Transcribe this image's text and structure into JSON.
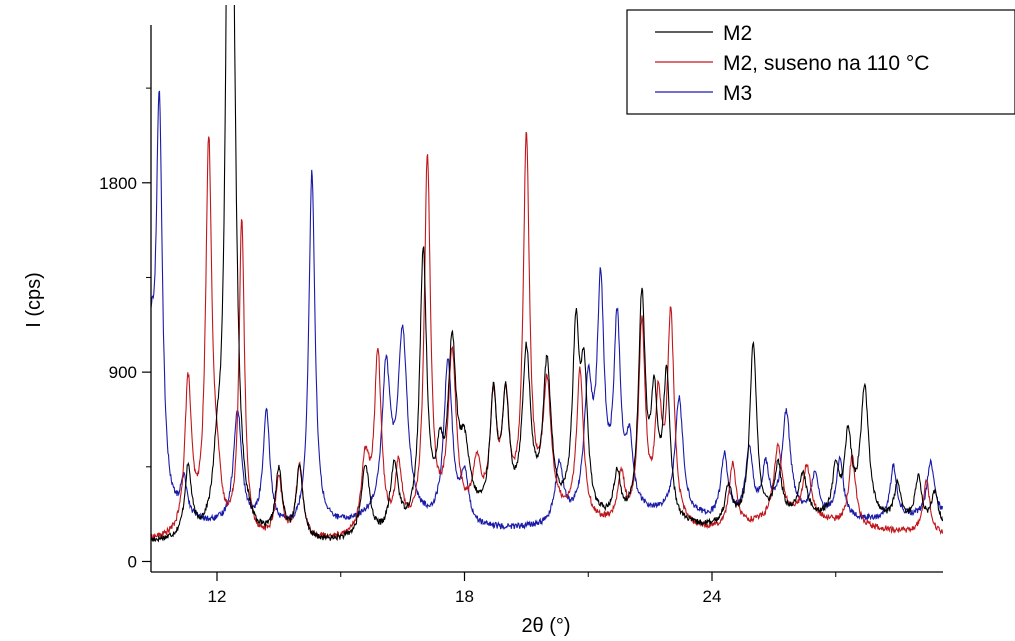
{
  "chart_data": {
    "type": "line",
    "xlabel": "2θ (°)",
    "ylabel": "I (cps)",
    "xlim": [
      10.4,
      29.6
    ],
    "ylim": [
      -50,
      2550
    ],
    "xticks": [
      12,
      18,
      24
    ],
    "yticks": [
      0,
      900,
      1800
    ],
    "grid": false,
    "legend_position": "top-right",
    "series": [
      {
        "name": "M2",
        "color": "#000000",
        "peaks": [
          [
            11.3,
            330,
            0.1
          ],
          [
            12.0,
            230,
            0.1
          ],
          [
            12.3,
            4000,
            0.09
          ],
          [
            12.4,
            1150,
            0.1
          ],
          [
            13.5,
            320,
            0.1
          ],
          [
            14.0,
            350,
            0.1
          ],
          [
            15.6,
            350,
            0.12
          ],
          [
            16.3,
            320,
            0.12
          ],
          [
            17.0,
            1300,
            0.1
          ],
          [
            17.4,
            270,
            0.1
          ],
          [
            17.7,
            800,
            0.12
          ],
          [
            18.0,
            300,
            0.15
          ],
          [
            18.7,
            550,
            0.1
          ],
          [
            19.0,
            530,
            0.1
          ],
          [
            19.5,
            760,
            0.12
          ],
          [
            20.0,
            700,
            0.12
          ],
          [
            20.7,
            850,
            0.1
          ],
          [
            20.9,
            630,
            0.1
          ],
          [
            21.7,
            220,
            0.1
          ],
          [
            22.3,
            1060,
            0.1
          ],
          [
            22.6,
            540,
            0.1
          ],
          [
            22.9,
            680,
            0.1
          ],
          [
            24.4,
            180,
            0.1
          ],
          [
            25.0,
            850,
            0.1
          ],
          [
            25.6,
            250,
            0.1
          ],
          [
            26.2,
            200,
            0.12
          ],
          [
            27.0,
            220,
            0.1
          ],
          [
            27.3,
            380,
            0.1
          ],
          [
            27.7,
            620,
            0.12
          ],
          [
            28.5,
            180,
            0.1
          ],
          [
            29.0,
            220,
            0.1
          ],
          [
            29.4,
            160,
            0.1
          ]
        ],
        "baseline": [
          [
            10.4,
            85
          ],
          [
            14.0,
            75
          ],
          [
            16.0,
            90
          ],
          [
            18.0,
            170
          ],
          [
            20.0,
            190
          ],
          [
            22.0,
            150
          ],
          [
            24.0,
            150
          ],
          [
            26.0,
            200
          ],
          [
            28.0,
            180
          ],
          [
            29.6,
            150
          ]
        ]
      },
      {
        "name": "M2, suseno na 110 °C",
        "color": "#c0171c",
        "peaks": [
          [
            11.3,
            730,
            0.1
          ],
          [
            11.8,
            1850,
            0.09
          ],
          [
            12.0,
            220,
            0.1
          ],
          [
            12.6,
            1500,
            0.08
          ],
          [
            13.5,
            280,
            0.1
          ],
          [
            14.0,
            350,
            0.1
          ],
          [
            15.6,
            350,
            0.12
          ],
          [
            15.9,
            850,
            0.1
          ],
          [
            16.4,
            300,
            0.1
          ],
          [
            17.1,
            1760,
            0.09
          ],
          [
            17.7,
            800,
            0.12
          ],
          [
            18.3,
            250,
            0.12
          ],
          [
            18.7,
            540,
            0.1
          ],
          [
            19.0,
            530,
            0.1
          ],
          [
            19.5,
            1780,
            0.09
          ],
          [
            20.0,
            600,
            0.12
          ],
          [
            20.8,
            700,
            0.1
          ],
          [
            21.8,
            230,
            0.1
          ],
          [
            22.3,
            950,
            0.1
          ],
          [
            22.7,
            550,
            0.1
          ],
          [
            23.0,
            980,
            0.1
          ],
          [
            24.5,
            300,
            0.1
          ],
          [
            25.6,
            350,
            0.12
          ],
          [
            26.3,
            250,
            0.12
          ],
          [
            27.4,
            330,
            0.1
          ],
          [
            29.2,
            250,
            0.1
          ]
        ],
        "baseline": [
          [
            10.4,
            95
          ],
          [
            14.0,
            85
          ],
          [
            16.0,
            95
          ],
          [
            18.0,
            160
          ],
          [
            20.0,
            200
          ],
          [
            22.0,
            140
          ],
          [
            24.0,
            140
          ],
          [
            26.0,
            200
          ],
          [
            28.0,
            150
          ],
          [
            29.6,
            120
          ]
        ]
      },
      {
        "name": "M3",
        "color": "#1a1aa8",
        "peaks": [
          [
            10.4,
            700,
            0.1
          ],
          [
            10.6,
            1920,
            0.09
          ],
          [
            11.2,
            180,
            0.1
          ],
          [
            12.5,
            550,
            0.12
          ],
          [
            13.2,
            540,
            0.1
          ],
          [
            14.3,
            1700,
            0.09
          ],
          [
            16.1,
            680,
            0.12
          ],
          [
            16.5,
            870,
            0.14
          ],
          [
            17.6,
            780,
            0.12
          ],
          [
            18.0,
            230,
            0.12
          ],
          [
            20.3,
            280,
            0.12
          ],
          [
            21.0,
            600,
            0.12
          ],
          [
            21.3,
            1050,
            0.1
          ],
          [
            21.7,
            880,
            0.1
          ],
          [
            22.0,
            300,
            0.1
          ],
          [
            23.2,
            560,
            0.12
          ],
          [
            24.3,
            300,
            0.1
          ],
          [
            24.9,
            320,
            0.1
          ],
          [
            25.3,
            220,
            0.1
          ],
          [
            25.8,
            480,
            0.12
          ],
          [
            26.5,
            200,
            0.1
          ],
          [
            27.1,
            270,
            0.1
          ],
          [
            28.4,
            250,
            0.1
          ],
          [
            29.3,
            260,
            0.1
          ]
        ],
        "baseline": [
          [
            10.4,
            180
          ],
          [
            12.0,
            160
          ],
          [
            14.0,
            130
          ],
          [
            16.0,
            190
          ],
          [
            18.0,
            140
          ],
          [
            20.0,
            150
          ],
          [
            22.0,
            220
          ],
          [
            24.0,
            190
          ],
          [
            26.0,
            220
          ],
          [
            28.0,
            190
          ],
          [
            29.6,
            220
          ]
        ]
      }
    ]
  }
}
